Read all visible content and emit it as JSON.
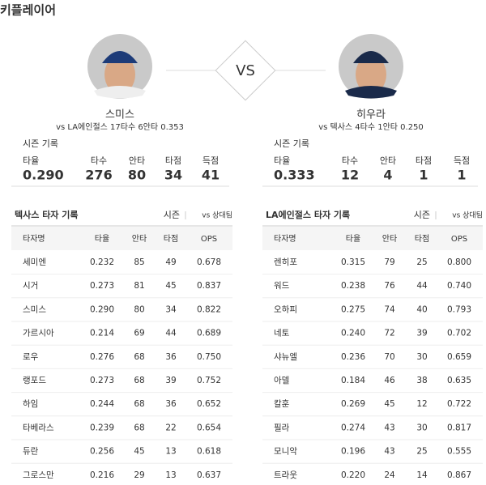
{
  "title": "키플레이어",
  "vs": "VS",
  "players": [
    {
      "name": "스미스",
      "summary": "vs LA에인절스 17타수 6안타 0.353",
      "season_label": "시즌 기록",
      "stat_headers": [
        "타율",
        "타수",
        "안타",
        "타점",
        "득점"
      ],
      "stat_values": [
        "0.290",
        "276",
        "80",
        "34",
        "41"
      ]
    },
    {
      "name": "히우라",
      "summary": "vs 텍사스 4타수 1안타 0.250",
      "season_label": "시즌 기록",
      "stat_headers": [
        "타율",
        "타수",
        "안타",
        "타점",
        "득점"
      ],
      "stat_values": [
        "0.333",
        "12",
        "4",
        "1",
        "1"
      ]
    }
  ],
  "tables": [
    {
      "title": "텍사스 타자 기록",
      "tab_active": "시즌",
      "tab_other": "vs 상대팀",
      "columns": [
        "타자명",
        "타율",
        "안타",
        "타점",
        "OPS"
      ],
      "rows": [
        [
          "세미엔",
          "0.232",
          "85",
          "49",
          "0.678"
        ],
        [
          "시거",
          "0.273",
          "81",
          "45",
          "0.837"
        ],
        [
          "스미스",
          "0.290",
          "80",
          "34",
          "0.822"
        ],
        [
          "가르시아",
          "0.214",
          "69",
          "44",
          "0.689"
        ],
        [
          "로우",
          "0.276",
          "68",
          "36",
          "0.750"
        ],
        [
          "랭포드",
          "0.273",
          "68",
          "39",
          "0.752"
        ],
        [
          "하임",
          "0.244",
          "68",
          "36",
          "0.652"
        ],
        [
          "타베라스",
          "0.239",
          "68",
          "22",
          "0.654"
        ],
        [
          "듀란",
          "0.256",
          "45",
          "13",
          "0.618"
        ],
        [
          "그로스만",
          "0.216",
          "29",
          "13",
          "0.637"
        ]
      ]
    },
    {
      "title": "LA에인절스 타자 기록",
      "tab_active": "시즌",
      "tab_other": "vs 상대팀",
      "columns": [
        "타자명",
        "타율",
        "안타",
        "타점",
        "OPS"
      ],
      "rows": [
        [
          "렌히포",
          "0.315",
          "79",
          "25",
          "0.800"
        ],
        [
          "워드",
          "0.238",
          "76",
          "44",
          "0.740"
        ],
        [
          "오하피",
          "0.275",
          "74",
          "40",
          "0.793"
        ],
        [
          "네토",
          "0.240",
          "72",
          "39",
          "0.702"
        ],
        [
          "샤뉴엘",
          "0.236",
          "70",
          "30",
          "0.659"
        ],
        [
          "아델",
          "0.184",
          "46",
          "38",
          "0.635"
        ],
        [
          "칼훈",
          "0.269",
          "45",
          "12",
          "0.722"
        ],
        [
          "필라",
          "0.274",
          "43",
          "30",
          "0.817"
        ],
        [
          "모니악",
          "0.196",
          "43",
          "25",
          "0.555"
        ],
        [
          "트라웃",
          "0.220",
          "24",
          "14",
          "0.867"
        ]
      ]
    }
  ]
}
